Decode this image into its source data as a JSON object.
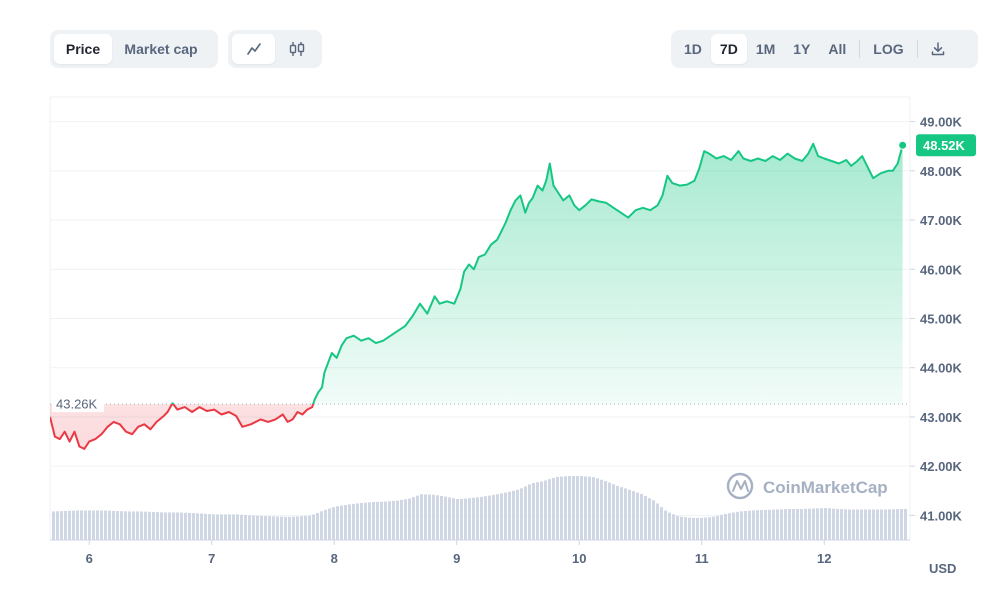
{
  "toolbar": {
    "metric_tabs": [
      {
        "label": "Price",
        "active": true
      },
      {
        "label": "Market cap",
        "active": false
      }
    ],
    "chart_type_icons": [
      {
        "icon": "line-chart-icon",
        "active": true
      },
      {
        "icon": "candlestick-icon",
        "active": false
      }
    ],
    "range_tabs": [
      {
        "label": "1D",
        "active": false
      },
      {
        "label": "7D",
        "active": true
      },
      {
        "label": "1M",
        "active": false
      },
      {
        "label": "1Y",
        "active": false
      },
      {
        "label": "All",
        "active": false
      }
    ],
    "log_label": "LOG",
    "download_icon": "download-icon"
  },
  "watermark": "CoinMarketCap",
  "currency_label": "USD",
  "colors": {
    "up": "#16c784",
    "down": "#ea3943",
    "volume": "#cfd6e4",
    "grid": "#eff2f5",
    "axis_text": "#58667e"
  },
  "chart_data": {
    "type": "line",
    "ylim": [
      40.5,
      49.5
    ],
    "y_unit": "K",
    "y_ticks": [
      "49.00K",
      "48.00K",
      "47.00K",
      "46.00K",
      "45.00K",
      "44.00K",
      "43.00K",
      "42.00K",
      "41.00K"
    ],
    "y_tick_values": [
      49,
      48,
      47,
      46,
      45,
      44,
      43,
      42,
      41
    ],
    "x_ticks": [
      "6",
      "7",
      "8",
      "9",
      "10",
      "11",
      "12"
    ],
    "x_tick_values": [
      6,
      7,
      8,
      9,
      10,
      11,
      12
    ],
    "xlim": [
      5.68,
      12.7
    ],
    "reference_price": 43.26,
    "reference_label": "43.26K",
    "current_price": 48.52,
    "current_label": "48.52K",
    "price_series": [
      [
        5.68,
        43.0
      ],
      [
        5.72,
        42.6
      ],
      [
        5.76,
        42.55
      ],
      [
        5.8,
        42.7
      ],
      [
        5.84,
        42.5
      ],
      [
        5.88,
        42.7
      ],
      [
        5.92,
        42.4
      ],
      [
        5.96,
        42.35
      ],
      [
        6.0,
        42.5
      ],
      [
        6.05,
        42.55
      ],
      [
        6.1,
        42.65
      ],
      [
        6.15,
        42.8
      ],
      [
        6.2,
        42.9
      ],
      [
        6.25,
        42.85
      ],
      [
        6.3,
        42.7
      ],
      [
        6.35,
        42.65
      ],
      [
        6.4,
        42.8
      ],
      [
        6.45,
        42.85
      ],
      [
        6.5,
        42.75
      ],
      [
        6.55,
        42.9
      ],
      [
        6.6,
        43.0
      ],
      [
        6.64,
        43.1
      ],
      [
        6.68,
        43.28
      ],
      [
        6.72,
        43.15
      ],
      [
        6.78,
        43.2
      ],
      [
        6.84,
        43.1
      ],
      [
        6.9,
        43.2
      ],
      [
        6.96,
        43.12
      ],
      [
        7.02,
        43.15
      ],
      [
        7.08,
        43.05
      ],
      [
        7.14,
        43.1
      ],
      [
        7.2,
        43.02
      ],
      [
        7.25,
        42.8
      ],
      [
        7.32,
        42.85
      ],
      [
        7.4,
        42.95
      ],
      [
        7.46,
        42.9
      ],
      [
        7.52,
        42.95
      ],
      [
        7.58,
        43.05
      ],
      [
        7.62,
        42.9
      ],
      [
        7.66,
        42.95
      ],
      [
        7.7,
        43.1
      ],
      [
        7.74,
        43.05
      ],
      [
        7.78,
        43.15
      ],
      [
        7.82,
        43.2
      ],
      [
        7.84,
        43.35
      ],
      [
        7.87,
        43.5
      ],
      [
        7.9,
        43.6
      ],
      [
        7.92,
        43.9
      ],
      [
        7.95,
        44.1
      ],
      [
        7.98,
        44.3
      ],
      [
        8.02,
        44.2
      ],
      [
        8.06,
        44.45
      ],
      [
        8.1,
        44.6
      ],
      [
        8.16,
        44.65
      ],
      [
        8.22,
        44.55
      ],
      [
        8.28,
        44.6
      ],
      [
        8.34,
        44.5
      ],
      [
        8.4,
        44.55
      ],
      [
        8.46,
        44.65
      ],
      [
        8.52,
        44.75
      ],
      [
        8.58,
        44.85
      ],
      [
        8.64,
        45.05
      ],
      [
        8.7,
        45.3
      ],
      [
        8.76,
        45.1
      ],
      [
        8.82,
        45.45
      ],
      [
        8.86,
        45.3
      ],
      [
        8.92,
        45.35
      ],
      [
        8.98,
        45.3
      ],
      [
        9.03,
        45.6
      ],
      [
        9.06,
        45.95
      ],
      [
        9.1,
        46.1
      ],
      [
        9.14,
        46.0
      ],
      [
        9.18,
        46.25
      ],
      [
        9.23,
        46.3
      ],
      [
        9.28,
        46.5
      ],
      [
        9.33,
        46.6
      ],
      [
        9.37,
        46.8
      ],
      [
        9.4,
        46.95
      ],
      [
        9.44,
        47.2
      ],
      [
        9.48,
        47.4
      ],
      [
        9.52,
        47.5
      ],
      [
        9.56,
        47.15
      ],
      [
        9.59,
        47.35
      ],
      [
        9.62,
        47.45
      ],
      [
        9.66,
        47.7
      ],
      [
        9.7,
        47.6
      ],
      [
        9.73,
        47.8
      ],
      [
        9.76,
        48.15
      ],
      [
        9.79,
        47.7
      ],
      [
        9.83,
        47.55
      ],
      [
        9.87,
        47.4
      ],
      [
        9.92,
        47.5
      ],
      [
        9.96,
        47.3
      ],
      [
        10.0,
        47.2
      ],
      [
        10.05,
        47.3
      ],
      [
        10.1,
        47.42
      ],
      [
        10.16,
        47.38
      ],
      [
        10.22,
        47.35
      ],
      [
        10.28,
        47.25
      ],
      [
        10.34,
        47.15
      ],
      [
        10.4,
        47.05
      ],
      [
        10.46,
        47.2
      ],
      [
        10.52,
        47.25
      ],
      [
        10.58,
        47.2
      ],
      [
        10.64,
        47.3
      ],
      [
        10.68,
        47.5
      ],
      [
        10.72,
        47.9
      ],
      [
        10.76,
        47.75
      ],
      [
        10.82,
        47.7
      ],
      [
        10.88,
        47.72
      ],
      [
        10.94,
        47.8
      ],
      [
        10.98,
        48.05
      ],
      [
        11.02,
        48.4
      ],
      [
        11.06,
        48.35
      ],
      [
        11.12,
        48.25
      ],
      [
        11.18,
        48.3
      ],
      [
        11.24,
        48.22
      ],
      [
        11.3,
        48.4
      ],
      [
        11.34,
        48.25
      ],
      [
        11.4,
        48.2
      ],
      [
        11.46,
        48.25
      ],
      [
        11.52,
        48.2
      ],
      [
        11.58,
        48.3
      ],
      [
        11.64,
        48.22
      ],
      [
        11.7,
        48.35
      ],
      [
        11.76,
        48.25
      ],
      [
        11.82,
        48.2
      ],
      [
        11.87,
        48.35
      ],
      [
        11.91,
        48.55
      ],
      [
        11.95,
        48.3
      ],
      [
        12.0,
        48.25
      ],
      [
        12.06,
        48.2
      ],
      [
        12.12,
        48.15
      ],
      [
        12.18,
        48.22
      ],
      [
        12.22,
        48.1
      ],
      [
        12.27,
        48.2
      ],
      [
        12.31,
        48.3
      ],
      [
        12.36,
        48.05
      ],
      [
        12.4,
        47.85
      ],
      [
        12.46,
        47.95
      ],
      [
        12.52,
        48.0
      ],
      [
        12.56,
        48.0
      ],
      [
        12.6,
        48.15
      ],
      [
        12.64,
        48.52
      ]
    ],
    "volume_series": [
      [
        5.7,
        41.08
      ],
      [
        5.8,
        41.09
      ],
      [
        5.9,
        41.1
      ],
      [
        6.0,
        41.1
      ],
      [
        6.1,
        41.1
      ],
      [
        6.2,
        41.09
      ],
      [
        6.3,
        41.08
      ],
      [
        6.4,
        41.08
      ],
      [
        6.5,
        41.07
      ],
      [
        6.6,
        41.06
      ],
      [
        6.7,
        41.06
      ],
      [
        6.8,
        41.05
      ],
      [
        6.9,
        41.04
      ],
      [
        7.0,
        41.02
      ],
      [
        7.1,
        41.02
      ],
      [
        7.2,
        41.02
      ],
      [
        7.3,
        41.0
      ],
      [
        7.4,
        40.99
      ],
      [
        7.5,
        40.98
      ],
      [
        7.6,
        40.97
      ],
      [
        7.7,
        40.98
      ],
      [
        7.8,
        41.0
      ],
      [
        7.9,
        41.1
      ],
      [
        8.0,
        41.18
      ],
      [
        8.1,
        41.22
      ],
      [
        8.2,
        41.25
      ],
      [
        8.3,
        41.27
      ],
      [
        8.4,
        41.28
      ],
      [
        8.5,
        41.3
      ],
      [
        8.6,
        41.34
      ],
      [
        8.7,
        41.43
      ],
      [
        8.8,
        41.42
      ],
      [
        8.9,
        41.38
      ],
      [
        9.0,
        41.33
      ],
      [
        9.1,
        41.35
      ],
      [
        9.2,
        41.38
      ],
      [
        9.3,
        41.42
      ],
      [
        9.4,
        41.47
      ],
      [
        9.5,
        41.53
      ],
      [
        9.6,
        41.65
      ],
      [
        9.7,
        41.7
      ],
      [
        9.8,
        41.78
      ],
      [
        9.9,
        41.8
      ],
      [
        10.0,
        41.8
      ],
      [
        10.1,
        41.78
      ],
      [
        10.2,
        41.7
      ],
      [
        10.3,
        41.6
      ],
      [
        10.4,
        41.52
      ],
      [
        10.5,
        41.43
      ],
      [
        10.6,
        41.3
      ],
      [
        10.7,
        41.08
      ],
      [
        10.8,
        40.98
      ],
      [
        10.9,
        40.95
      ],
      [
        11.0,
        40.95
      ],
      [
        11.1,
        40.98
      ],
      [
        11.2,
        41.04
      ],
      [
        11.3,
        41.08
      ],
      [
        11.4,
        41.1
      ],
      [
        11.5,
        41.11
      ],
      [
        11.6,
        41.12
      ],
      [
        11.7,
        41.13
      ],
      [
        11.8,
        41.13
      ],
      [
        11.9,
        41.14
      ],
      [
        12.0,
        41.15
      ],
      [
        12.1,
        41.13
      ],
      [
        12.2,
        41.12
      ],
      [
        12.3,
        41.12
      ],
      [
        12.4,
        41.12
      ],
      [
        12.5,
        41.12
      ],
      [
        12.6,
        41.13
      ],
      [
        12.66,
        41.13
      ]
    ]
  }
}
